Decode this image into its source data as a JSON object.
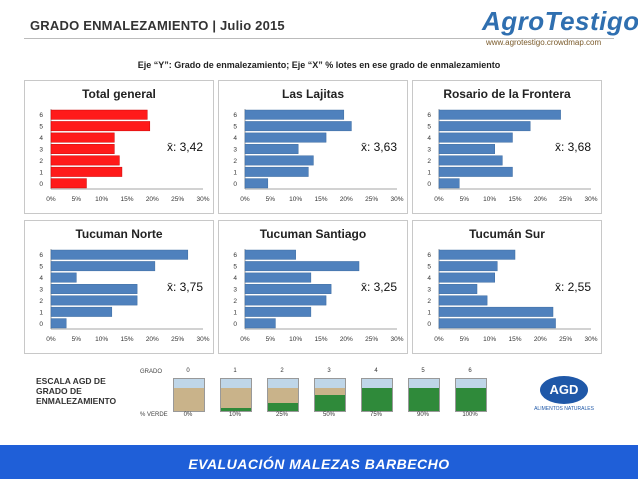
{
  "header": {
    "title": "GRADO ENMALEZAMIENTO | Julio 2015",
    "logo_text": "AgroTestigo",
    "logo_url": "www.agrotestigo.crowdmap.com"
  },
  "subtitle": "Eje “Y”: Grado de enmalezamiento; Eje “X” % lotes en ese grado de enmalezamiento",
  "chart_data": [
    {
      "type": "bar",
      "orientation": "horizontal",
      "title": "Total general",
      "color": "#ff1a1a",
      "categories": [
        "0",
        "1",
        "2",
        "3",
        "4",
        "5",
        "6"
      ],
      "values": [
        7,
        14,
        13.5,
        12.5,
        12.5,
        19.5,
        19
      ],
      "xlim": [
        0,
        30
      ],
      "xticks": [
        "0%",
        "5%",
        "10%",
        "15%",
        "20%",
        "25%",
        "30%"
      ],
      "mean_label": "x̄: 3,42"
    },
    {
      "type": "bar",
      "orientation": "horizontal",
      "title": "Las Lajitas",
      "color": "#4f81bd",
      "categories": [
        "0",
        "1",
        "2",
        "3",
        "4",
        "5",
        "6"
      ],
      "values": [
        4.5,
        12.5,
        13.5,
        10.5,
        16,
        21,
        19.5
      ],
      "xlim": [
        0,
        30
      ],
      "xticks": [
        "0%",
        "5%",
        "10%",
        "15%",
        "20%",
        "25%",
        "30%"
      ],
      "mean_label": "x̄: 3,63"
    },
    {
      "type": "bar",
      "orientation": "horizontal",
      "title": "Rosario de la Frontera",
      "color": "#4f81bd",
      "categories": [
        "0",
        "1",
        "2",
        "3",
        "4",
        "5",
        "6"
      ],
      "values": [
        4,
        14.5,
        12.5,
        11,
        14.5,
        18,
        24
      ],
      "xlim": [
        0,
        30
      ],
      "xticks": [
        "0%",
        "5%",
        "10%",
        "15%",
        "20%",
        "25%",
        "30%"
      ],
      "mean_label": "x̄: 3,68"
    },
    {
      "type": "bar",
      "orientation": "horizontal",
      "title": "Tucuman Norte",
      "color": "#4f81bd",
      "categories": [
        "0",
        "1",
        "2",
        "3",
        "4",
        "5",
        "6"
      ],
      "values": [
        3,
        12,
        17,
        17,
        5,
        20.5,
        27
      ],
      "xlim": [
        0,
        30
      ],
      "xticks": [
        "0%",
        "5%",
        "10%",
        "15%",
        "20%",
        "25%",
        "30%"
      ],
      "mean_label": "x̄: 3,75"
    },
    {
      "type": "bar",
      "orientation": "horizontal",
      "title": "Tucuman Santiago",
      "color": "#4f81bd",
      "categories": [
        "0",
        "1",
        "2",
        "3",
        "4",
        "5",
        "6"
      ],
      "values": [
        6,
        13,
        16,
        17,
        13,
        22.5,
        10
      ],
      "xlim": [
        0,
        30
      ],
      "xticks": [
        "0%",
        "5%",
        "10%",
        "15%",
        "20%",
        "25%",
        "30%"
      ],
      "mean_label": "x̄: 3,25"
    },
    {
      "type": "bar",
      "orientation": "horizontal",
      "title": "Tucumán Sur",
      "color": "#4f81bd",
      "categories": [
        "0",
        "1",
        "2",
        "3",
        "4",
        "5",
        "6"
      ],
      "values": [
        23,
        22.5,
        9.5,
        7.5,
        11,
        11.5,
        15
      ],
      "xlim": [
        0,
        30
      ],
      "xticks": [
        "0%",
        "5%",
        "10%",
        "15%",
        "20%",
        "25%",
        "30%"
      ],
      "mean_label": "x̄: 2,55"
    }
  ],
  "scale": {
    "label_lines": [
      "ESCALA AGD DE",
      "GRADO DE",
      "ENMALEZAMIENTO"
    ],
    "grado_label": "GRADO",
    "verde_label": "% VERDE",
    "grades": [
      "0",
      "1",
      "2",
      "3",
      "4",
      "5",
      "6"
    ],
    "verde": [
      "0%",
      "10%",
      "25%",
      "50%",
      "75%",
      "90%",
      "100%"
    ],
    "green_fraction": [
      0,
      0.1,
      0.25,
      0.5,
      0.75,
      0.9,
      1.0
    ]
  },
  "agd": {
    "badge": "AGD",
    "tagline": "ALIMENTOS NATURALES"
  },
  "footer": {
    "text": "EVALUACIÓN MALEZAS BARBECHO"
  }
}
